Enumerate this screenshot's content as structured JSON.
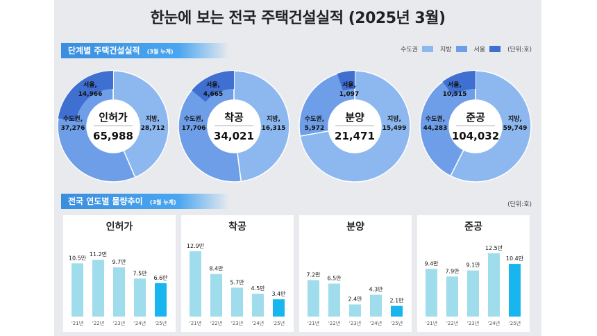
{
  "title": "한눈에 보는 전국 주택건설실적  (2025년 3월)",
  "section1": {
    "title": "단계별 주택건설실적",
    "sub": "(3월 누계)"
  },
  "section2": {
    "title": "전국 연도별 물량추이",
    "sub": "(3월 누계)"
  },
  "legend": {
    "items": [
      "수도권",
      "지방",
      "서울"
    ],
    "unit": "(단위:호)"
  },
  "unit2": "(단위:호)",
  "colors": {
    "capital": "#6f9ee8",
    "region": "#8db8ef",
    "seoul": "#3f6fd0",
    "bar": "#9fdcec",
    "bar_latest": "#18b5ef"
  },
  "chart_data": [
    {
      "type": "pie",
      "name": "인허가",
      "total": "65,988",
      "slices": [
        {
          "label": "지방",
          "value": 28712,
          "text": "28,712"
        },
        {
          "label": "수도권",
          "value": 37276,
          "text": "37,276"
        },
        {
          "label": "서울",
          "value": 14966,
          "text": "14,966"
        }
      ]
    },
    {
      "type": "pie",
      "name": "착공",
      "total": "34,021",
      "slices": [
        {
          "label": "지방",
          "value": 16315,
          "text": "16,315"
        },
        {
          "label": "수도권",
          "value": 17706,
          "text": "17,706"
        },
        {
          "label": "서울",
          "value": 4665,
          "text": "4,665"
        }
      ]
    },
    {
      "type": "pie",
      "name": "분양",
      "total": "21,471",
      "slices": [
        {
          "label": "지방",
          "value": 15499,
          "text": "15,499"
        },
        {
          "label": "수도권",
          "value": 5972,
          "text": "5,972"
        },
        {
          "label": "서울",
          "value": 1097,
          "text": "1,097"
        }
      ]
    },
    {
      "type": "pie",
      "name": "준공",
      "total": "104,032",
      "slices": [
        {
          "label": "지방",
          "value": 59749,
          "text": "59,749"
        },
        {
          "label": "수도권",
          "value": 44283,
          "text": "44,283"
        },
        {
          "label": "서울",
          "value": 10515,
          "text": "10,515"
        }
      ]
    },
    {
      "type": "bar",
      "title": "인허가",
      "categories": [
        "'21년",
        "'22년",
        "'23년",
        "'24년",
        "'25년"
      ],
      "values": [
        10.5,
        11.2,
        9.7,
        7.5,
        6.6
      ],
      "labels": [
        "10.5만",
        "11.2만",
        "9.7만",
        "7.5만",
        "6.6만"
      ]
    },
    {
      "type": "bar",
      "title": "착공",
      "categories": [
        "'21년",
        "'22년",
        "'23년",
        "'24년",
        "'25년"
      ],
      "values": [
        12.9,
        8.4,
        5.7,
        4.5,
        3.4
      ],
      "labels": [
        "12.9만",
        "8.4만",
        "5.7만",
        "4.5만",
        "3.4만"
      ]
    },
    {
      "type": "bar",
      "title": "분양",
      "categories": [
        "'21년",
        "'22년",
        "'23년",
        "'24년",
        "'25년"
      ],
      "values": [
        7.2,
        6.5,
        2.4,
        4.3,
        2.1
      ],
      "labels": [
        "7.2만",
        "6.5만",
        "2.4만",
        "4.3만",
        "2.1만"
      ]
    },
    {
      "type": "bar",
      "title": "준공",
      "categories": [
        "'21년",
        "'22년",
        "'23년",
        "'24년",
        "'25년"
      ],
      "values": [
        9.4,
        7.9,
        9.1,
        12.5,
        10.4
      ],
      "labels": [
        "9.4만",
        "7.9만",
        "9.1만",
        "12.5만",
        "10.4만"
      ]
    }
  ]
}
